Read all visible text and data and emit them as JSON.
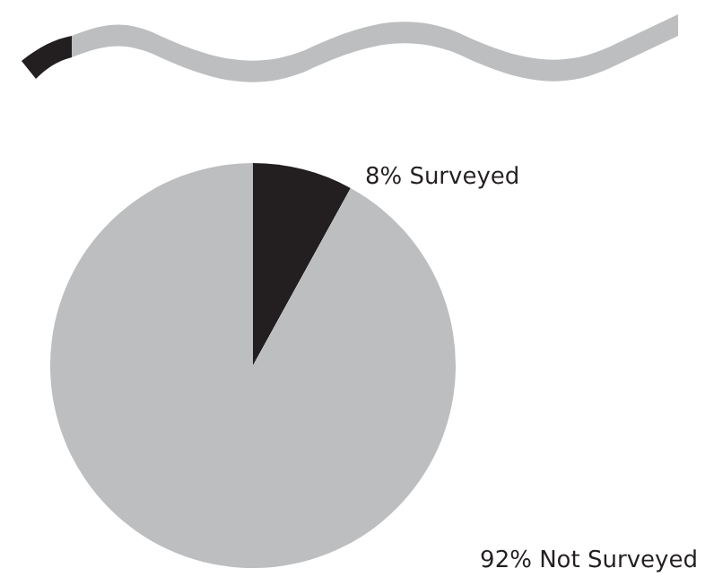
{
  "chart_data": {
    "type": "pie",
    "categories": [
      "Surveyed",
      "Not Surveyed"
    ],
    "values": [
      8,
      92
    ],
    "colors": [
      "#231f20",
      "#bcbec0"
    ],
    "value_labels": [
      "8%",
      "92%"
    ],
    "legend": false
  }
}
